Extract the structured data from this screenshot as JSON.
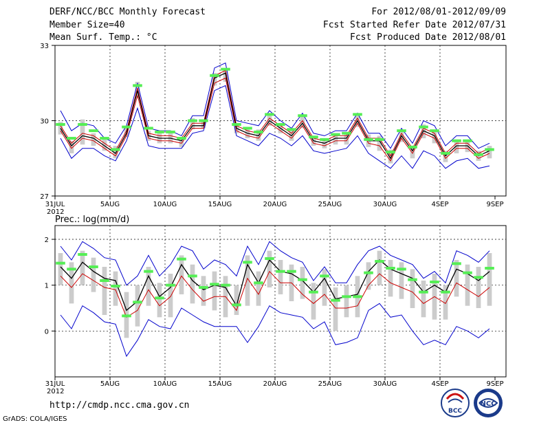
{
  "header": {
    "line1_left": "DERF/NCC/BCC Monthly Forecast",
    "line2_left": "Member Size=40",
    "line3_left": "Mean Surf. Temp.: °C",
    "line1_right": "For 2012/08/01-2012/09/09",
    "line2_right": "Fcst Started Refer Date 2012/07/31",
    "line3_right": "Fcst Produced Date 2012/08/01"
  },
  "precip_title": "Prec.: log(mm/d)",
  "footer": {
    "url": "http://cmdp.ncc.cma.gov.cn",
    "credit": "GrADS: COLA/IGES",
    "logo_bcc": "BCC",
    "logo_ncc": "NCC"
  },
  "colors": {
    "envelope": "#0000cc",
    "spread": "#cc0000",
    "mean": "#000000",
    "box": "#cccccc",
    "marker": "#55ee55"
  },
  "chart_data": [
    {
      "type": "line",
      "title": "Mean Surf. Temp.: °C",
      "x": [
        0,
        1,
        2,
        3,
        4,
        5,
        6,
        7,
        8,
        9,
        10,
        11,
        12,
        13,
        14,
        15,
        16,
        17,
        18,
        19,
        20,
        21,
        22,
        23,
        24,
        25,
        26,
        27,
        28,
        29,
        30,
        31,
        32,
        33,
        34,
        35,
        36,
        37,
        38,
        39
      ],
      "xtick_labels": [
        {
          "x": 0,
          "label": "31JUL"
        },
        {
          "x": 5,
          "label": "5AUG"
        },
        {
          "x": 10,
          "label": "10AUG"
        },
        {
          "x": 15,
          "label": "15AUG"
        },
        {
          "x": 20,
          "label": "20AUG"
        },
        {
          "x": 25,
          "label": "25AUG"
        },
        {
          "x": 30,
          "label": "30AUG"
        },
        {
          "x": 35,
          "label": "4SEP"
        },
        {
          "x": 40,
          "label": "9SEP"
        }
      ],
      "year_label": "2012",
      "ylim": [
        27,
        33
      ],
      "yticks": [
        27,
        30,
        33
      ],
      "series": [
        {
          "name": "ensemble max",
          "values": [
            30.4,
            29.6,
            29.9,
            29.8,
            29.3,
            29.1,
            29.8,
            31.5,
            29.7,
            29.6,
            29.6,
            29.4,
            30.2,
            30.2,
            32.1,
            32.3,
            30.0,
            29.9,
            29.8,
            30.4,
            30.0,
            29.7,
            30.3,
            29.5,
            29.4,
            29.6,
            29.6,
            30.3,
            29.5,
            29.5,
            28.9,
            29.7,
            29.1,
            30.0,
            29.8,
            29.0,
            29.4,
            29.4,
            28.9,
            29.1
          ]
        },
        {
          "name": "upper spread",
          "values": [
            29.8,
            29.1,
            29.5,
            29.4,
            29.1,
            28.8,
            29.6,
            31.3,
            29.5,
            29.4,
            29.4,
            29.3,
            29.9,
            29.9,
            31.8,
            32.0,
            29.8,
            29.6,
            29.5,
            30.1,
            29.8,
            29.5,
            30.0,
            29.3,
            29.2,
            29.4,
            29.4,
            30.1,
            29.3,
            29.3,
            28.6,
            29.5,
            28.9,
            29.7,
            29.5,
            28.7,
            29.1,
            29.1,
            28.7,
            28.9
          ]
        },
        {
          "name": "ensemble mean",
          "values": [
            29.7,
            29.0,
            29.4,
            29.3,
            29.0,
            28.7,
            29.5,
            31.2,
            29.4,
            29.3,
            29.3,
            29.2,
            29.8,
            29.8,
            31.7,
            31.9,
            29.7,
            29.5,
            29.4,
            30.0,
            29.7,
            29.4,
            29.9,
            29.2,
            29.1,
            29.3,
            29.3,
            30.0,
            29.2,
            29.2,
            28.5,
            29.4,
            28.8,
            29.6,
            29.4,
            28.6,
            29.0,
            29.0,
            28.6,
            28.8
          ]
        },
        {
          "name": "lower spread",
          "values": [
            29.6,
            28.9,
            29.3,
            29.2,
            28.9,
            28.6,
            29.4,
            31.0,
            29.3,
            29.2,
            29.2,
            29.1,
            29.7,
            29.7,
            31.5,
            31.7,
            29.6,
            29.4,
            29.3,
            29.9,
            29.6,
            29.3,
            29.8,
            29.1,
            29.0,
            29.2,
            29.2,
            29.9,
            29.1,
            29.0,
            28.4,
            29.3,
            28.7,
            29.5,
            29.3,
            28.5,
            28.9,
            28.9,
            28.5,
            28.7
          ]
        },
        {
          "name": "ensemble min",
          "values": [
            29.3,
            28.5,
            28.9,
            28.9,
            28.6,
            28.4,
            29.2,
            30.5,
            29.0,
            28.9,
            28.9,
            28.9,
            29.5,
            29.6,
            31.2,
            31.4,
            29.4,
            29.2,
            29.0,
            29.5,
            29.3,
            29.0,
            29.4,
            28.8,
            28.7,
            28.8,
            28.9,
            29.4,
            28.7,
            28.4,
            28.1,
            28.6,
            28.1,
            28.8,
            28.6,
            28.1,
            28.4,
            28.5,
            28.1,
            28.2
          ]
        },
        {
          "name": "box upper",
          "values": [
            29.95,
            29.2,
            30.05,
            29.5,
            29.3,
            29.0,
            29.75,
            31.55,
            29.6,
            29.5,
            29.5,
            29.35,
            30.1,
            30.05,
            31.9,
            32.1,
            29.85,
            29.75,
            29.65,
            30.3,
            29.9,
            29.7,
            30.25,
            29.4,
            29.3,
            29.5,
            29.5,
            30.3,
            29.45,
            29.4,
            28.85,
            29.6,
            29.0,
            29.85,
            29.6,
            28.8,
            29.25,
            29.25,
            28.8,
            29.0
          ]
        },
        {
          "name": "box lower",
          "values": [
            29.45,
            28.7,
            29.05,
            29.0,
            28.8,
            28.5,
            29.35,
            30.9,
            29.2,
            29.1,
            29.1,
            28.95,
            29.65,
            29.7,
            31.4,
            31.55,
            29.5,
            29.3,
            29.2,
            29.8,
            29.5,
            29.2,
            29.7,
            29.0,
            28.9,
            29.05,
            29.05,
            29.75,
            28.95,
            28.8,
            28.3,
            29.15,
            28.5,
            29.3,
            29.1,
            28.35,
            28.7,
            28.75,
            28.4,
            28.5
          ]
        },
        {
          "name": "observed marker",
          "values": [
            29.85,
            29.3,
            29.85,
            29.6,
            29.3,
            28.85,
            29.75,
            31.4,
            29.7,
            29.55,
            29.55,
            29.3,
            30.0,
            30.0,
            31.8,
            32.05,
            29.85,
            29.7,
            29.55,
            30.25,
            29.85,
            29.65,
            30.2,
            29.35,
            29.25,
            29.45,
            29.5,
            30.25,
            29.25,
            29.25,
            28.75,
            29.6,
            28.95,
            29.75,
            29.6,
            28.7,
            29.2,
            29.2,
            28.65,
            28.85
          ]
        }
      ]
    },
    {
      "type": "line",
      "title": "Prec.: log(mm/d)",
      "x": [
        0,
        1,
        2,
        3,
        4,
        5,
        6,
        7,
        8,
        9,
        10,
        11,
        12,
        13,
        14,
        15,
        16,
        17,
        18,
        19,
        20,
        21,
        22,
        23,
        24,
        25,
        26,
        27,
        28,
        29,
        30,
        31,
        32,
        33,
        34,
        35,
        36,
        37,
        38,
        39
      ],
      "xtick_labels": [
        {
          "x": 0,
          "label": "31JUL"
        },
        {
          "x": 5,
          "label": "5AUG"
        },
        {
          "x": 10,
          "label": "10AUG"
        },
        {
          "x": 15,
          "label": "15AUG"
        },
        {
          "x": 20,
          "label": "20AUG"
        },
        {
          "x": 25,
          "label": "25AUG"
        },
        {
          "x": 30,
          "label": "30AUG"
        },
        {
          "x": 35,
          "label": "4SEP"
        },
        {
          "x": 40,
          "label": "9SEP"
        }
      ],
      "year_label": "2012",
      "ylim": [
        -1.0,
        2.3
      ],
      "yticks": [
        0,
        1,
        2
      ],
      "series": [
        {
          "name": "ensemble max",
          "values": [
            1.85,
            1.55,
            1.95,
            1.8,
            1.6,
            1.55,
            1.0,
            1.2,
            1.65,
            1.2,
            1.45,
            1.85,
            1.75,
            1.35,
            1.55,
            1.45,
            1.2,
            1.85,
            1.45,
            1.95,
            1.75,
            1.6,
            1.5,
            1.1,
            1.4,
            1.05,
            1.05,
            1.45,
            1.75,
            1.85,
            1.65,
            1.55,
            1.45,
            1.15,
            1.3,
            1.05,
            1.75,
            1.65,
            1.5,
            1.75
          ]
        },
        {
          "name": "ensemble mean",
          "values": [
            1.4,
            1.15,
            1.5,
            1.3,
            1.15,
            1.1,
            0.45,
            0.65,
            1.2,
            0.75,
            0.95,
            1.45,
            1.1,
            0.9,
            1.0,
            0.95,
            0.55,
            1.45,
            1.05,
            1.55,
            1.3,
            1.25,
            1.1,
            0.85,
            1.15,
            0.7,
            0.75,
            0.8,
            1.3,
            1.55,
            1.35,
            1.25,
            1.15,
            0.85,
            1.0,
            0.85,
            1.35,
            1.25,
            1.1,
            1.3
          ]
        },
        {
          "name": "lower spread",
          "values": [
            1.2,
            0.95,
            1.25,
            1.1,
            0.95,
            0.9,
            0.3,
            0.45,
            0.9,
            0.55,
            0.75,
            1.2,
            0.9,
            0.65,
            0.75,
            0.75,
            0.45,
            1.15,
            0.8,
            1.3,
            1.05,
            1.05,
            0.8,
            0.6,
            0.8,
            0.5,
            0.5,
            0.55,
            1.0,
            1.25,
            1.05,
            0.95,
            0.85,
            0.6,
            0.75,
            0.6,
            1.05,
            0.9,
            0.75,
            0.95
          ]
        },
        {
          "name": "ensemble min",
          "values": [
            0.35,
            0.05,
            0.55,
            0.4,
            0.2,
            0.15,
            -0.55,
            -0.2,
            0.25,
            0.1,
            0.05,
            0.5,
            0.35,
            0.2,
            0.1,
            0.1,
            0.1,
            -0.25,
            0.1,
            0.55,
            0.4,
            0.35,
            0.3,
            0.05,
            0.2,
            -0.3,
            -0.25,
            -0.15,
            0.45,
            0.6,
            0.3,
            0.35,
            0.0,
            -0.3,
            -0.2,
            -0.3,
            0.1,
            0.0,
            -0.15,
            0.05
          ]
        },
        {
          "name": "box upper",
          "values": [
            1.7,
            1.5,
            1.75,
            1.6,
            1.4,
            1.3,
            0.85,
            1.0,
            1.4,
            1.05,
            1.25,
            1.65,
            1.45,
            1.2,
            1.3,
            1.2,
            1.0,
            1.65,
            1.3,
            1.75,
            1.55,
            1.45,
            1.4,
            1.05,
            1.35,
            0.95,
            1.0,
            1.2,
            1.5,
            1.75,
            1.55,
            1.5,
            1.35,
            1.1,
            1.25,
            1.0,
            1.55,
            1.45,
            1.4,
            1.7
          ]
        },
        {
          "name": "box lower",
          "values": [
            1.0,
            0.6,
            1.0,
            0.85,
            0.35,
            0.55,
            -0.15,
            0.1,
            0.55,
            0.3,
            0.3,
            0.8,
            0.6,
            0.55,
            0.45,
            0.3,
            0.35,
            0.55,
            0.55,
            0.95,
            0.8,
            0.65,
            0.7,
            0.25,
            0.55,
            0.0,
            0.3,
            0.3,
            0.9,
            1.0,
            0.75,
            0.7,
            0.5,
            0.3,
            0.25,
            0.25,
            0.75,
            0.55,
            0.5,
            0.55
          ]
        },
        {
          "name": "observed marker",
          "values": [
            1.48,
            1.35,
            1.67,
            1.4,
            1.1,
            0.98,
            0.33,
            0.63,
            1.3,
            0.72,
            1.0,
            1.57,
            1.2,
            0.95,
            1.02,
            1.0,
            0.57,
            1.5,
            1.05,
            1.58,
            1.3,
            1.3,
            1.12,
            0.85,
            1.2,
            0.67,
            0.75,
            0.75,
            1.27,
            1.52,
            1.37,
            1.35,
            1.12,
            0.85,
            1.07,
            0.85,
            1.47,
            1.27,
            1.17,
            1.37
          ]
        }
      ]
    }
  ]
}
